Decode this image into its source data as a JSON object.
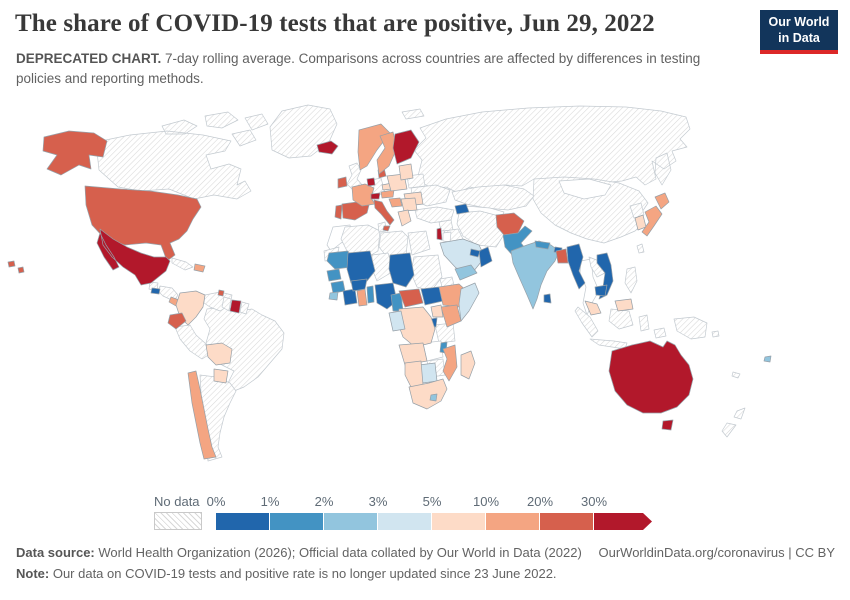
{
  "header": {
    "title": "The share of COVID-19 tests that are positive, Jun 29, 2022",
    "subtitle_bold": "DEPRECATED CHART.",
    "subtitle_rest": " 7-day rolling average. Comparisons across countries are affected by differences in testing policies and reporting methods.",
    "logo_line1": "Our World",
    "logo_line2": "in Data"
  },
  "footer": {
    "source_label": "Data source:",
    "source_text": " World Health Organization (2026); Official data collated by Our World in Data (2022)",
    "link_text": "OurWorldinData.org/coronavirus | CC BY",
    "note_label": "Note:",
    "note_text": " Our data on COVID-19 tests and positive rate is no longer updated since 23 June 2022."
  },
  "chart_data": {
    "type": "heatmap",
    "subtype": "choropleth-world-map",
    "title": "The share of COVID-19 tests that are positive",
    "date": "Jun 29, 2022",
    "unit": "%",
    "legend": {
      "position": "bottom",
      "no_data_label": "No data",
      "tick_labels": [
        "0%",
        "1%",
        "2%",
        "3%",
        "5%",
        "10%",
        "20%",
        "30%"
      ],
      "bins": [
        {
          "range": "0-1%",
          "color": "#2166ac"
        },
        {
          "range": "1-2%",
          "color": "#4393c3"
        },
        {
          "range": "2-3%",
          "color": "#92c5de"
        },
        {
          "range": "3-5%",
          "color": "#d1e5f0"
        },
        {
          "range": "5-10%",
          "color": "#fddbc7"
        },
        {
          "range": "10-20%",
          "color": "#f4a582"
        },
        {
          "range": "20-30%",
          "color": "#d6604d"
        },
        {
          "range": "30%+",
          "color": "#b2182b"
        }
      ]
    },
    "countries": [
      {
        "id": "russia",
        "name": "Russia",
        "value": "No data"
      },
      {
        "id": "canada",
        "name": "Canada",
        "value": "No data"
      },
      {
        "id": "greenland",
        "name": "Greenland",
        "value": "No data"
      },
      {
        "id": "svalbard",
        "name": "Svalbard",
        "value": "No data"
      },
      {
        "id": "china",
        "name": "China",
        "value": "No data"
      },
      {
        "id": "kazakhstan",
        "name": "Kazakhstan",
        "value": "No data"
      },
      {
        "id": "uzbekistan",
        "name": "Uzbekistan",
        "value": "No data"
      },
      {
        "id": "mongolia",
        "name": "Mongolia",
        "value": "No data"
      },
      {
        "id": "brazil",
        "name": "Brazil",
        "value": "No data"
      },
      {
        "id": "argentina",
        "name": "Argentina",
        "value": "No data"
      },
      {
        "id": "peru",
        "name": "Peru",
        "value": "No data"
      },
      {
        "id": "venezuela",
        "name": "Venezuela",
        "value": "No data"
      },
      {
        "id": "guyana",
        "name": "Guyana",
        "value": "No data"
      },
      {
        "id": "french-guiana",
        "name": "French Guiana",
        "value": "No data"
      },
      {
        "id": "united-kingdom",
        "name": "United Kingdom",
        "value": "No data"
      },
      {
        "id": "germany",
        "name": "Germany",
        "value": "No data"
      },
      {
        "id": "belarus",
        "name": "Belarus",
        "value": "No data"
      },
      {
        "id": "ukraine",
        "name": "Ukraine",
        "value": "No data"
      },
      {
        "id": "turkey",
        "name": "Turkey",
        "value": "No data"
      },
      {
        "id": "syria",
        "name": "Syria",
        "value": "No data"
      },
      {
        "id": "iraq",
        "name": "Iraq",
        "value": "No data"
      },
      {
        "id": "iran",
        "name": "Iran",
        "value": "No data"
      },
      {
        "id": "jordan",
        "name": "Jordan",
        "value": "No data"
      },
      {
        "id": "morocco",
        "name": "Morocco",
        "value": "No data"
      },
      {
        "id": "western-sahara",
        "name": "Western Sahara",
        "value": "No data"
      },
      {
        "id": "algeria",
        "name": "Algeria",
        "value": "No data"
      },
      {
        "id": "tunisia",
        "name": "Tunisia",
        "value": "No data"
      },
      {
        "id": "libya",
        "name": "Libya",
        "value": "No data"
      },
      {
        "id": "egypt",
        "name": "Egypt",
        "value": "No data"
      },
      {
        "id": "niger",
        "name": "Niger",
        "value": "No data"
      },
      {
        "id": "sudan",
        "name": "Sudan",
        "value": "No data"
      },
      {
        "id": "eritrea",
        "name": "Eritrea",
        "value": "No data"
      },
      {
        "id": "tanzania",
        "name": "Tanzania",
        "value": "No data"
      },
      {
        "id": "zambia",
        "name": "Zambia",
        "value": "No data"
      },
      {
        "id": "zimbabwe",
        "name": "Zimbabwe",
        "value": "No data"
      },
      {
        "id": "guatemala",
        "name": "Guatemala",
        "value": "No data"
      },
      {
        "id": "honduras",
        "name": "Honduras",
        "value": "No data"
      },
      {
        "id": "cuba",
        "name": "Cuba",
        "value": "No data"
      },
      {
        "id": "thailand",
        "name": "Thailand",
        "value": "No data"
      },
      {
        "id": "laos",
        "name": "Laos",
        "value": "No data"
      },
      {
        "id": "indonesia",
        "name": "Indonesia",
        "value": "No data"
      },
      {
        "id": "philippines",
        "name": "Philippines",
        "value": "No data"
      },
      {
        "id": "north-korea",
        "name": "North Korea",
        "value": "No data"
      },
      {
        "id": "taiwan",
        "name": "Taiwan",
        "value": "No data"
      },
      {
        "id": "papua-new-guinea",
        "name": "Papua New Guinea",
        "value": "No data"
      },
      {
        "id": "new-zealand",
        "name": "New Zealand",
        "value": "No data"
      },
      {
        "id": "solomon-islands",
        "name": "Solomon Islands",
        "value": "No data"
      },
      {
        "id": "new-caledonia",
        "name": "New Caledonia",
        "value": "No data"
      },
      {
        "id": "usa",
        "name": "United States",
        "value": "20-30%"
      },
      {
        "id": "mexico",
        "name": "Mexico",
        "value": "30%+"
      },
      {
        "id": "el-salvador",
        "name": "El Salvador",
        "value": "0-1%"
      },
      {
        "id": "costa-rica",
        "name": "Costa Rica",
        "value": "10-20%"
      },
      {
        "id": "panama",
        "name": "Panama",
        "value": "5-10%"
      },
      {
        "id": "dominican-republic",
        "name": "Dominican Republic",
        "value": "10-20%"
      },
      {
        "id": "trinidad-and-tobago",
        "name": "Trinidad and Tobago",
        "value": "20-30%"
      },
      {
        "id": "colombia",
        "name": "Colombia",
        "value": "5-10%"
      },
      {
        "id": "suriname",
        "name": "Suriname",
        "value": "30%+"
      },
      {
        "id": "ecuador",
        "name": "Ecuador",
        "value": "20-30%"
      },
      {
        "id": "bolivia",
        "name": "Bolivia",
        "value": "5-10%"
      },
      {
        "id": "paraguay",
        "name": "Paraguay",
        "value": "5-10%"
      },
      {
        "id": "chile",
        "name": "Chile",
        "value": "10-20%"
      },
      {
        "id": "iceland",
        "name": "Iceland",
        "value": "30%+"
      },
      {
        "id": "ireland",
        "name": "Ireland",
        "value": "20-30%"
      },
      {
        "id": "portugal",
        "name": "Portugal",
        "value": "20-30%"
      },
      {
        "id": "spain",
        "name": "Spain",
        "value": "20-30%"
      },
      {
        "id": "france",
        "name": "France",
        "value": "10-20%"
      },
      {
        "id": "belgium",
        "name": "Belgium",
        "value": "30%+"
      },
      {
        "id": "denmark",
        "name": "Denmark",
        "value": "20-30%"
      },
      {
        "id": "switzerland",
        "name": "Switzerland",
        "value": "30%+"
      },
      {
        "id": "austria",
        "name": "Austria",
        "value": "10-20%"
      },
      {
        "id": "czechia",
        "name": "Czechia",
        "value": "5-10%"
      },
      {
        "id": "poland",
        "name": "Poland",
        "value": "5-10%"
      },
      {
        "id": "italy",
        "name": "Italy",
        "value": "20-30%"
      },
      {
        "id": "norway",
        "name": "Norway",
        "value": "10-20%"
      },
      {
        "id": "sweden",
        "name": "Sweden",
        "value": "10-20%"
      },
      {
        "id": "finland",
        "name": "Finland",
        "value": "30%+"
      },
      {
        "id": "latvia",
        "name": "Latvia",
        "value": "5-10%"
      },
      {
        "id": "romania",
        "name": "Romania",
        "value": "5-10%"
      },
      {
        "id": "croatia",
        "name": "Croatia",
        "value": "10-20%"
      },
      {
        "id": "serbia",
        "name": "Serbia",
        "value": "5-10%"
      },
      {
        "id": "greece",
        "name": "Greece",
        "value": "5-10%"
      },
      {
        "id": "israel",
        "name": "Israel",
        "value": "30%+"
      },
      {
        "id": "saudi-arabia",
        "name": "Saudi Arabia",
        "value": "3-5%"
      },
      {
        "id": "yemen",
        "name": "Yemen",
        "value": "2-3%"
      },
      {
        "id": "oman",
        "name": "Oman",
        "value": "0-1%"
      },
      {
        "id": "united-arab-emirates",
        "name": "United Arab Emirates",
        "value": "0-1%"
      },
      {
        "id": "azerbaijan",
        "name": "Azerbaijan",
        "value": "0-1%"
      },
      {
        "id": "afghanistan",
        "name": "Afghanistan",
        "value": "20-30%"
      },
      {
        "id": "pakistan",
        "name": "Pakistan",
        "value": "1-2%"
      },
      {
        "id": "india",
        "name": "India",
        "value": "2-3%"
      },
      {
        "id": "nepal",
        "name": "Nepal",
        "value": "1-2%"
      },
      {
        "id": "bhutan",
        "name": "Bhutan",
        "value": "0-1%"
      },
      {
        "id": "bangladesh",
        "name": "Bangladesh",
        "value": "20-30%"
      },
      {
        "id": "sri-lanka",
        "name": "Sri Lanka",
        "value": "0-1%"
      },
      {
        "id": "myanmar",
        "name": "Myanmar",
        "value": "0-1%"
      },
      {
        "id": "vietnam",
        "name": "Vietnam",
        "value": "0-1%"
      },
      {
        "id": "cambodia",
        "name": "Cambodia",
        "value": "0-1%"
      },
      {
        "id": "malaysia",
        "name": "Malaysia",
        "value": "5-10%"
      },
      {
        "id": "south-korea",
        "name": "South Korea",
        "value": "5-10%"
      },
      {
        "id": "japan",
        "name": "Japan",
        "value": "10-20%"
      },
      {
        "id": "australia",
        "name": "Australia",
        "value": "30%+"
      },
      {
        "id": "fiji",
        "name": "Fiji",
        "value": "2-3%"
      },
      {
        "id": "mauritania",
        "name": "Mauritania",
        "value": "1-2%"
      },
      {
        "id": "mali",
        "name": "Mali",
        "value": "0-1%"
      },
      {
        "id": "chad",
        "name": "Chad",
        "value": "0-1%"
      },
      {
        "id": "senegal",
        "name": "Senegal",
        "value": "1-2%"
      },
      {
        "id": "guinea",
        "name": "Guinea",
        "value": "1-2%"
      },
      {
        "id": "sierra-leone",
        "name": "Sierra Leone",
        "value": "2-3%"
      },
      {
        "id": "cote-divoire",
        "name": "Cote d'Ivoire",
        "value": "0-1%"
      },
      {
        "id": "ghana",
        "name": "Ghana",
        "value": "10-20%"
      },
      {
        "id": "burkina-faso",
        "name": "Burkina Faso",
        "value": "0-1%"
      },
      {
        "id": "benin",
        "name": "Benin",
        "value": "1-2%"
      },
      {
        "id": "nigeria",
        "name": "Nigeria",
        "value": "0-1%"
      },
      {
        "id": "cameroon",
        "name": "Cameroon",
        "value": "1-2%"
      },
      {
        "id": "central-african-republic",
        "name": "Central African Republic",
        "value": "20-30%"
      },
      {
        "id": "south-sudan",
        "name": "South Sudan",
        "value": "0-1%"
      },
      {
        "id": "ethiopia",
        "name": "Ethiopia",
        "value": "10-20%"
      },
      {
        "id": "somalia",
        "name": "Somalia",
        "value": "3-5%"
      },
      {
        "id": "kenya",
        "name": "Kenya",
        "value": "10-20%"
      },
      {
        "id": "uganda",
        "name": "Uganda",
        "value": "5-10%"
      },
      {
        "id": "rwanda",
        "name": "Rwanda",
        "value": "0-1%"
      },
      {
        "id": "dr-congo",
        "name": "Democratic Republic of Congo",
        "value": "5-10%"
      },
      {
        "id": "gabon",
        "name": "Gabon",
        "value": "3-5%"
      },
      {
        "id": "angola",
        "name": "Angola",
        "value": "5-10%"
      },
      {
        "id": "malawi",
        "name": "Malawi",
        "value": "1-2%"
      },
      {
        "id": "mozambique",
        "name": "Mozambique",
        "value": "10-20%"
      },
      {
        "id": "botswana",
        "name": "Botswana",
        "value": "3-5%"
      },
      {
        "id": "namibia",
        "name": "Namibia",
        "value": "5-10%"
      },
      {
        "id": "south-africa",
        "name": "South Africa",
        "value": "5-10%"
      },
      {
        "id": "lesotho",
        "name": "Lesotho",
        "value": "2-3%"
      },
      {
        "id": "madagascar",
        "name": "Madagascar",
        "value": "5-10%"
      }
    ]
  }
}
